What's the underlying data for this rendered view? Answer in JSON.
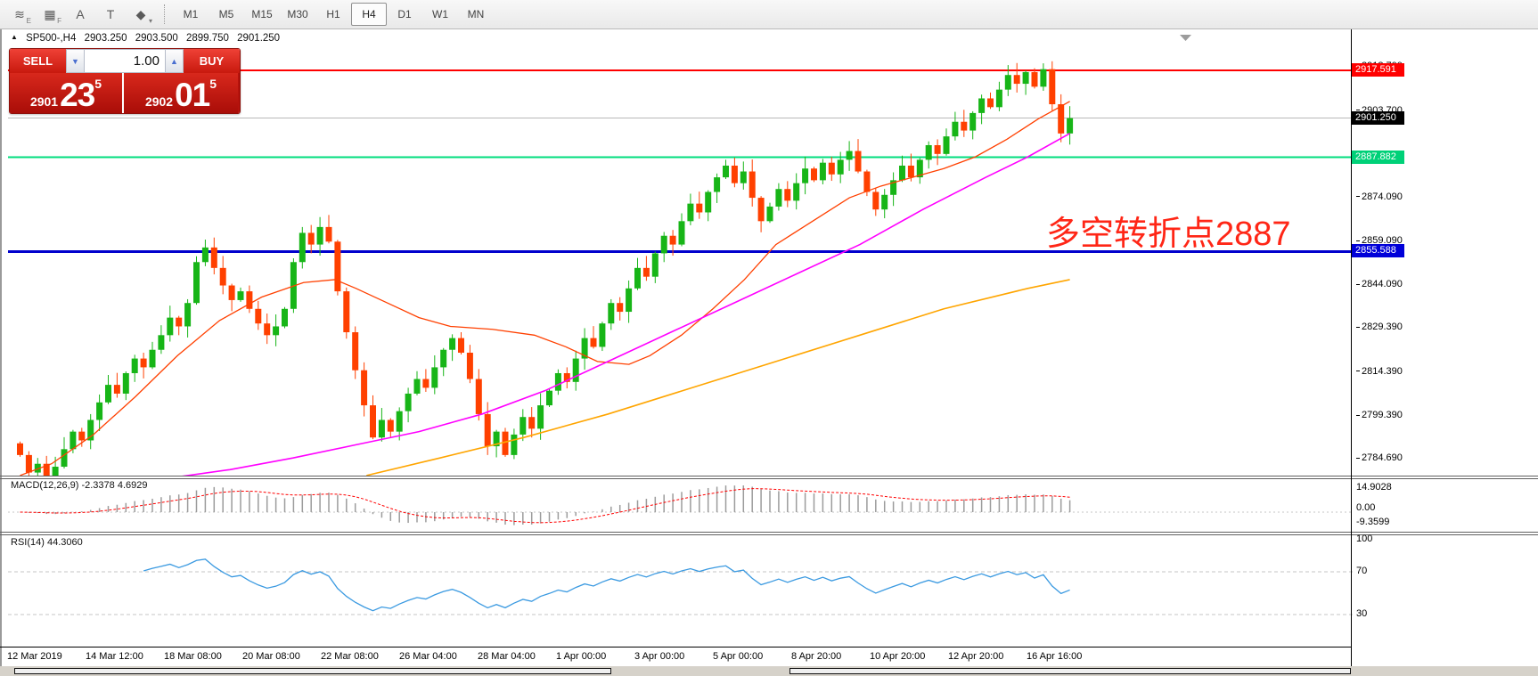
{
  "toolbar": {
    "draw_tools": [
      {
        "name": "trendline-tools-icon",
        "glyph": "≋",
        "sub": "E"
      },
      {
        "name": "fibonacci-grid-icon",
        "glyph": "▦",
        "sub": "F"
      },
      {
        "name": "text-label-icon",
        "glyph": "A",
        "sub": ""
      },
      {
        "name": "text-box-icon",
        "glyph": "T",
        "sub": ""
      },
      {
        "name": "arrow-tools-icon",
        "glyph": "◆",
        "sub": "▾"
      }
    ],
    "timeframes": [
      "M1",
      "M5",
      "M15",
      "M30",
      "H1",
      "H4",
      "D1",
      "W1",
      "MN"
    ],
    "active_timeframe": "H4"
  },
  "chart_header": {
    "collapse_icon": "▲",
    "symbol_period": "SP500-,H4",
    "open": "2903.250",
    "high": "2903.500",
    "low": "2899.750",
    "close": "2901.250"
  },
  "trade_panel": {
    "sell_label": "SELL",
    "buy_label": "BUY",
    "volume": "1.00",
    "spinner_down": "▼",
    "spinner_up": "▲",
    "sell_big": "23",
    "sell_small": "2901",
    "sell_sup": "5",
    "buy_big": "01",
    "buy_small": "2902",
    "buy_sup": "5"
  },
  "annotation": {
    "text": "多空转折点2887"
  },
  "price_scale": {
    "ticks": [
      {
        "label": "2918.700",
        "price": 2918.7
      },
      {
        "label": "2903.700",
        "price": 2903.7
      },
      {
        "label": "2874.090",
        "price": 2874.09
      },
      {
        "label": "2859.090",
        "price": 2859.09
      },
      {
        "label": "2844.090",
        "price": 2844.09
      },
      {
        "label": "2829.390",
        "price": 2829.39
      },
      {
        "label": "2814.390",
        "price": 2814.39
      },
      {
        "label": "2799.390",
        "price": 2799.39
      },
      {
        "label": "2784.690",
        "price": 2784.69
      }
    ],
    "badges": [
      {
        "label": "2917.591",
        "price": 2917.591,
        "bg": "#ff0000",
        "fg": "#ffffff",
        "name": "resistance-line-price-badge"
      },
      {
        "label": "2901.250",
        "price": 2901.25,
        "bg": "#000000",
        "fg": "#ffffff",
        "name": "current-price-badge"
      },
      {
        "label": "2887.882",
        "price": 2887.882,
        "bg": "#00d178",
        "fg": "#ffffff",
        "name": "pivot-line-price-badge"
      },
      {
        "label": "2855.588",
        "price": 2855.588,
        "bg": "#0000d9",
        "fg": "#ffffff",
        "name": "support-line-price-badge"
      }
    ]
  },
  "hlines": [
    {
      "price": 2901.25,
      "color": "#b8b8b8",
      "width": 1,
      "name": "current-price-line"
    },
    {
      "price": 2917.591,
      "color": "#ff0000",
      "width": 2,
      "name": "resistance-line"
    },
    {
      "price": 2887.882,
      "color": "#00dd7d",
      "width": 2,
      "name": "pivot-line-2887"
    },
    {
      "price": 2855.588,
      "color": "#0000cd",
      "width": 3,
      "name": "support-line"
    }
  ],
  "time_axis": {
    "labels": [
      "12 Mar 2019",
      "14 Mar 12:00",
      "18 Mar 08:00",
      "20 Mar 08:00",
      "22 Mar 08:00",
      "26 Mar 04:00",
      "28 Mar 04:00",
      "1 Apr 00:00",
      "3 Apr 00:00",
      "5 Apr 00:00",
      "8 Apr 20:00",
      "10 Apr 20:00",
      "12 Apr 20:00",
      "16 Apr 16:00"
    ]
  },
  "macd_panel": {
    "label": "MACD(12,26,9) -2.3378 4.6929",
    "ticks": [
      "14.9028",
      "0.00",
      "-9.3599"
    ]
  },
  "rsi_panel": {
    "label": "RSI(14) 44.3060",
    "ticks": [
      100,
      70,
      30
    ],
    "levels": [
      70,
      30
    ]
  },
  "colors": {
    "candle_up": "#17b517",
    "candle_down": "#ff4000",
    "macd_hist": "#9c9c9c",
    "macd_signal": "#ff0000",
    "rsi_line": "#3b9ae1",
    "grid_dash": "#c4c4c4"
  },
  "chart_data": {
    "type": "candlestick",
    "symbol": "SP500-",
    "timeframe": "H4",
    "ohlc_last_bar": {
      "open": 2903.25,
      "high": 2903.5,
      "low": 2899.75,
      "close": 2901.25
    },
    "bid": 2901.235,
    "ask": 2902.015,
    "y_axis_visible_range": [
      2774,
      2926
    ],
    "first_open": 2790,
    "closes": [
      2786,
      2780,
      2783,
      2777,
      2782,
      2788,
      2794,
      2791,
      2798,
      2804,
      2810,
      2807,
      2814,
      2819,
      2816,
      2822,
      2827,
      2833,
      2830,
      2838,
      2852,
      2857,
      2850,
      2844,
      2839,
      2842,
      2836,
      2831,
      2827,
      2830,
      2836,
      2852,
      2862,
      2858,
      2864,
      2859,
      2842,
      2828,
      2815,
      2803,
      2792,
      2798,
      2794,
      2801,
      2807,
      2812,
      2809,
      2816,
      2822,
      2826,
      2821,
      2812,
      2800,
      2789,
      2794,
      2786,
      2793,
      2799,
      2795,
      2803,
      2808,
      2814,
      2811,
      2819,
      2826,
      2823,
      2831,
      2838,
      2835,
      2843,
      2850,
      2847,
      2855,
      2861,
      2858,
      2866,
      2872,
      2869,
      2876,
      2881,
      2885,
      2879,
      2883,
      2874,
      2866,
      2871,
      2877,
      2873,
      2879,
      2884,
      2880,
      2886,
      2882,
      2887,
      2890,
      2883,
      2876,
      2870,
      2875,
      2880,
      2885,
      2881,
      2887,
      2892,
      2889,
      2895,
      2900,
      2897,
      2903,
      2908,
      2905,
      2911,
      2916,
      2913,
      2917,
      2912,
      2918,
      2906,
      2896,
      2901.25
    ],
    "ma_fast": {
      "color": "#ff4000",
      "points": [
        [
          0,
          2779
        ],
        [
          0.03,
          2783
        ],
        [
          0.07,
          2793
        ],
        [
          0.11,
          2806
        ],
        [
          0.15,
          2820
        ],
        [
          0.19,
          2832
        ],
        [
          0.23,
          2840
        ],
        [
          0.27,
          2845
        ],
        [
          0.3,
          2846
        ],
        [
          0.32,
          2843
        ],
        [
          0.35,
          2838
        ],
        [
          0.38,
          2833
        ],
        [
          0.41,
          2830
        ],
        [
          0.45,
          2829
        ],
        [
          0.49,
          2827
        ],
        [
          0.52,
          2823
        ],
        [
          0.55,
          2818
        ],
        [
          0.58,
          2817
        ],
        [
          0.6,
          2820
        ],
        [
          0.63,
          2827
        ],
        [
          0.66,
          2836
        ],
        [
          0.69,
          2846
        ],
        [
          0.72,
          2858
        ],
        [
          0.755,
          2866
        ],
        [
          0.79,
          2874
        ],
        [
          0.82,
          2878
        ],
        [
          0.85,
          2881
        ],
        [
          0.88,
          2884
        ],
        [
          0.91,
          2888
        ],
        [
          0.94,
          2894
        ],
        [
          0.97,
          2901
        ],
        [
          1,
          2907
        ]
      ]
    },
    "ma_mid": {
      "color": "#ff00ff",
      "points": [
        [
          0,
          2775.5
        ],
        [
          0.08,
          2776.5
        ],
        [
          0.14,
          2778
        ],
        [
          0.2,
          2781
        ],
        [
          0.26,
          2785
        ],
        [
          0.32,
          2789.5
        ],
        [
          0.38,
          2794
        ],
        [
          0.44,
          2800
        ],
        [
          0.5,
          2808
        ],
        [
          0.56,
          2818
        ],
        [
          0.62,
          2828
        ],
        [
          0.68,
          2838
        ],
        [
          0.74,
          2848
        ],
        [
          0.8,
          2858
        ],
        [
          0.86,
          2870
        ],
        [
          0.92,
          2881
        ],
        [
          0.96,
          2888
        ],
        [
          1,
          2896
        ]
      ]
    },
    "ma_slow": {
      "color": "#ffa500",
      "points": [
        [
          0.33,
          2779
        ],
        [
          0.4,
          2785
        ],
        [
          0.48,
          2792
        ],
        [
          0.56,
          2800
        ],
        [
          0.64,
          2809
        ],
        [
          0.72,
          2818
        ],
        [
          0.8,
          2827
        ],
        [
          0.88,
          2836
        ],
        [
          0.96,
          2843
        ],
        [
          1,
          2846
        ]
      ]
    },
    "indicators": {
      "macd": {
        "params": [
          12,
          26,
          9
        ],
        "value": -2.3378,
        "signal": 4.6929,
        "scale_labels": [
          14.9028,
          0.0,
          -9.3599
        ]
      },
      "rsi": {
        "period": 14,
        "value": 44.306,
        "levels": [
          70,
          30
        ],
        "scale_labels": [
          100,
          70,
          30
        ]
      }
    }
  }
}
